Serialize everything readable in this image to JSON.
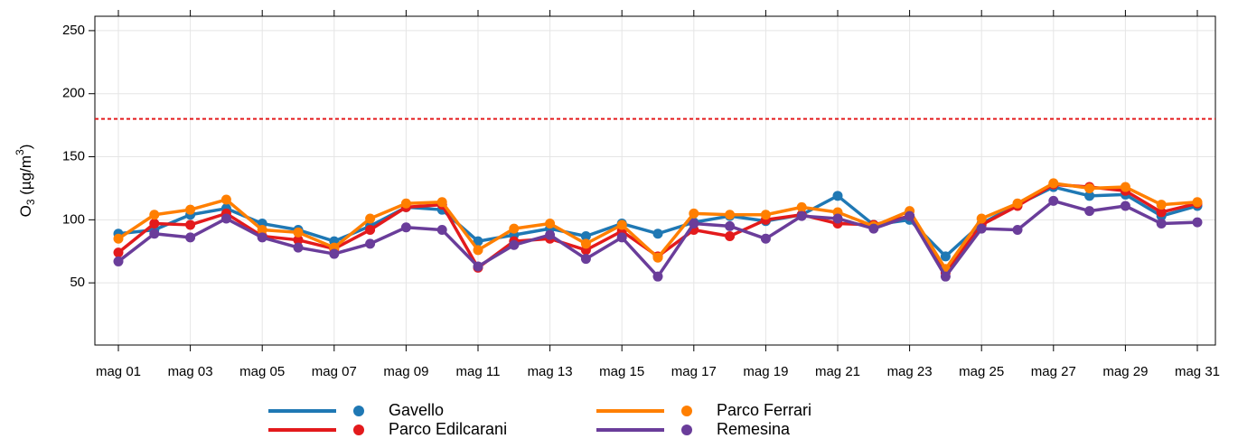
{
  "chart_data": {
    "type": "line",
    "y_label": [
      "O",
      "3",
      " (µg/m",
      "3",
      ")"
    ],
    "categories": [
      "mag 01",
      null,
      "mag 03",
      null,
      "mag 05",
      null,
      "mag 07",
      null,
      "mag 09",
      null,
      "mag 11",
      null,
      "mag 13",
      null,
      "mag 15",
      null,
      "mag 17",
      null,
      "mag 19",
      null,
      "mag 21",
      null,
      "mag 23",
      null,
      "mag 25",
      null,
      "mag 27",
      null,
      "mag 29",
      null,
      "mag 31"
    ],
    "series": [
      {
        "name": "Gavello",
        "color": "#1f78b4",
        "values": [
          89,
          92,
          104,
          109,
          97,
          92,
          83,
          95,
          110,
          108,
          83,
          88,
          93,
          87,
          97,
          89,
          98,
          103,
          99,
          104,
          119,
          96,
          100,
          71,
          97,
          112,
          126,
          119,
          120,
          103,
          111
        ]
      },
      {
        "name": "Parco Edilcarani",
        "color": "#e31a1c",
        "values": [
          74,
          97,
          96,
          105,
          87,
          84,
          77,
          92,
          110,
          112,
          62,
          83,
          85,
          76,
          91,
          71,
          92,
          87,
          100,
          104,
          97,
          96,
          103,
          58,
          96,
          111,
          128,
          126,
          123,
          106,
          113
        ]
      },
      {
        "name": "Parco Ferrari",
        "color": "#ff7f00",
        "values": [
          85,
          104,
          108,
          116,
          92,
          90,
          78,
          101,
          113,
          114,
          76,
          93,
          97,
          81,
          96,
          70,
          105,
          104,
          104,
          110,
          106,
          95,
          107,
          61,
          101,
          113,
          129,
          125,
          126,
          112,
          114
        ]
      },
      {
        "name": "Remesina",
        "color": "#6a3d9a",
        "values": [
          67,
          89,
          86,
          101,
          86,
          78,
          73,
          81,
          94,
          92,
          63,
          80,
          88,
          69,
          86,
          55,
          97,
          95,
          85,
          103,
          101,
          93,
          103,
          55,
          93,
          92,
          115,
          107,
          111,
          97,
          98
        ]
      }
    ],
    "reference_line": {
      "value": 180,
      "color": "#e31a1c"
    },
    "ylim": [
      0.7,
      261.4
    ],
    "yticks": [
      50,
      100,
      150,
      200,
      250
    ],
    "grid": true
  }
}
